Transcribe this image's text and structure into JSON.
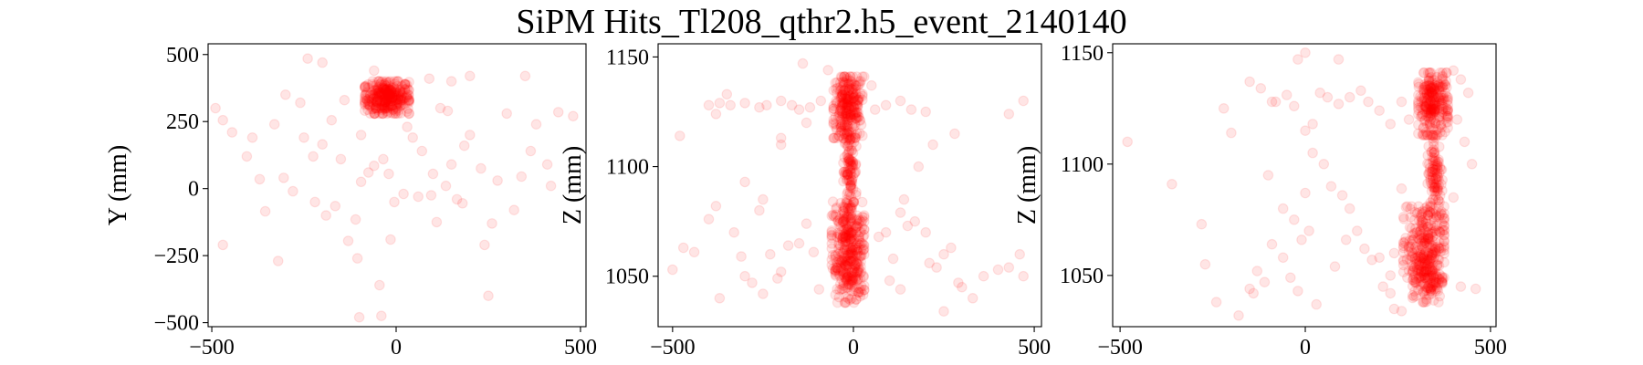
{
  "title": "SiPM Hits_Tl208_qthr2.h5_event_2140140",
  "colors": {
    "points": "#ff0000",
    "axes": "#000000",
    "background": "#ffffff"
  },
  "chart_data": [
    {
      "type": "scatter",
      "xlabel": "",
      "ylabel": "Y (mm)",
      "xlim": [
        -510,
        515
      ],
      "ylim": [
        -515,
        540
      ],
      "xticks": [
        -500,
        0,
        500
      ],
      "yticks": [
        -500,
        -250,
        0,
        250,
        500
      ],
      "clusters": [
        {
          "center": [
            -25,
            340
          ],
          "radius": [
            60,
            60
          ],
          "count": 320
        }
      ],
      "points": [
        [
          -490,
          300
        ],
        [
          -470,
          255
        ],
        [
          -445,
          210
        ],
        [
          -405,
          120
        ],
        [
          -370,
          35
        ],
        [
          -355,
          -85
        ],
        [
          -320,
          -270
        ],
        [
          -470,
          -210
        ],
        [
          -305,
          40
        ],
        [
          -280,
          -10
        ],
        [
          -250,
          190
        ],
        [
          -225,
          120
        ],
        [
          -200,
          165
        ],
        [
          -175,
          255
        ],
        [
          -165,
          -65
        ],
        [
          -150,
          110
        ],
        [
          -110,
          -115
        ],
        [
          -105,
          -260
        ],
        [
          -95,
          25
        ],
        [
          -75,
          60
        ],
        [
          -60,
          85
        ],
        [
          -45,
          -360
        ],
        [
          -35,
          110
        ],
        [
          -20,
          55
        ],
        [
          20,
          -20
        ],
        [
          45,
          190
        ],
        [
          70,
          140
        ],
        [
          95,
          -25
        ],
        [
          110,
          -125
        ],
        [
          135,
          10
        ],
        [
          150,
          90
        ],
        [
          165,
          -40
        ],
        [
          180,
          -55
        ],
        [
          200,
          200
        ],
        [
          230,
          75
        ],
        [
          250,
          -400
        ],
        [
          275,
          30
        ],
        [
          300,
          280
        ],
        [
          340,
          45
        ],
        [
          365,
          140
        ],
        [
          410,
          90
        ],
        [
          440,
          285
        ],
        [
          480,
          270
        ],
        [
          -240,
          485
        ],
        [
          -200,
          470
        ],
        [
          -100,
          -480
        ],
        [
          -40,
          -475
        ],
        [
          90,
          410
        ],
        [
          150,
          400
        ],
        [
          200,
          420
        ],
        [
          240,
          -210
        ],
        [
          320,
          -80
        ],
        [
          -130,
          -195
        ],
        [
          -15,
          -190
        ],
        [
          60,
          -30
        ],
        [
          120,
          300
        ],
        [
          -300,
          350
        ],
        [
          -260,
          320
        ],
        [
          -330,
          240
        ],
        [
          380,
          240
        ],
        [
          -390,
          190
        ],
        [
          420,
          10
        ],
        [
          -220,
          -50
        ],
        [
          -190,
          -100
        ],
        [
          260,
          -130
        ],
        [
          30,
          230
        ],
        [
          -95,
          200
        ],
        [
          100,
          55
        ],
        [
          -5,
          -50
        ],
        [
          185,
          160
        ],
        [
          -140,
          330
        ],
        [
          140,
          290
        ],
        [
          350,
          420
        ],
        [
          -60,
          440
        ]
      ]
    },
    {
      "type": "scatter",
      "xlabel": "",
      "ylabel": "Z (mm)",
      "xlim": [
        -540,
        520
      ],
      "ylim": [
        1027,
        1156
      ],
      "xticks": [
        -500,
        0,
        500
      ],
      "yticks": [
        1050,
        1100,
        1150
      ],
      "clusters": [
        {
          "center": [
            -15,
            1127
          ],
          "radius": [
            40,
            14
          ],
          "count": 260
        },
        {
          "center": [
            -15,
            1068
          ],
          "radius": [
            45,
            16
          ],
          "count": 230
        },
        {
          "center": [
            -10,
            1050
          ],
          "radius": [
            40,
            12
          ],
          "count": 150
        },
        {
          "center": [
            -10,
            1098
          ],
          "radius": [
            18,
            17
          ],
          "count": 110
        }
      ],
      "points": [
        [
          -480,
          1114
        ],
        [
          -400,
          1128
        ],
        [
          -370,
          1129
        ],
        [
          -340,
          1128
        ],
        [
          -300,
          1129
        ],
        [
          -260,
          1127
        ],
        [
          -240,
          1128
        ],
        [
          -200,
          1130
        ],
        [
          -170,
          1128
        ],
        [
          -150,
          1126
        ],
        [
          -120,
          1127
        ],
        [
          -90,
          1130
        ],
        [
          60,
          1126
        ],
        [
          90,
          1128
        ],
        [
          130,
          1130
        ],
        [
          160,
          1126
        ],
        [
          200,
          1125
        ],
        [
          470,
          1130
        ],
        [
          430,
          1124
        ],
        [
          -500,
          1053
        ],
        [
          -470,
          1063
        ],
        [
          -440,
          1061
        ],
        [
          -400,
          1076
        ],
        [
          -380,
          1082
        ],
        [
          -370,
          1040
        ],
        [
          -330,
          1070
        ],
        [
          -310,
          1059
        ],
        [
          -300,
          1050
        ],
        [
          -280,
          1047
        ],
        [
          -260,
          1080
        ],
        [
          -250,
          1085
        ],
        [
          -230,
          1060
        ],
        [
          -210,
          1049
        ],
        [
          -200,
          1052
        ],
        [
          -180,
          1064
        ],
        [
          -150,
          1065
        ],
        [
          -130,
          1074
        ],
        [
          -110,
          1061
        ],
        [
          -95,
          1044
        ],
        [
          70,
          1068
        ],
        [
          90,
          1070
        ],
        [
          110,
          1058
        ],
        [
          130,
          1079
        ],
        [
          150,
          1073
        ],
        [
          170,
          1075
        ],
        [
          200,
          1070
        ],
        [
          210,
          1056
        ],
        [
          230,
          1054
        ],
        [
          250,
          1060
        ],
        [
          270,
          1063
        ],
        [
          290,
          1047
        ],
        [
          300,
          1045
        ],
        [
          330,
          1040
        ],
        [
          360,
          1050
        ],
        [
          400,
          1053
        ],
        [
          430,
          1054
        ],
        [
          460,
          1060
        ],
        [
          470,
          1050
        ],
        [
          -300,
          1093
        ],
        [
          -200,
          1110
        ],
        [
          180,
          1100
        ],
        [
          220,
          1110
        ],
        [
          280,
          1115
        ],
        [
          -200,
          1113
        ],
        [
          250,
          1034
        ],
        [
          -130,
          1120
        ],
        [
          100,
          1048
        ],
        [
          130,
          1044
        ],
        [
          140,
          1085
        ],
        [
          -250,
          1042
        ],
        [
          -140,
          1147
        ],
        [
          30,
          1141
        ],
        [
          -70,
          1144
        ],
        [
          50,
          1137
        ],
        [
          -350,
          1133
        ],
        [
          -380,
          1124
        ]
      ]
    },
    {
      "type": "scatter",
      "xlabel": "",
      "ylabel": "Z (mm)",
      "xlim": [
        -520,
        515
      ],
      "ylim": [
        1027,
        1154
      ],
      "xticks": [
        -500,
        0,
        500
      ],
      "yticks": [
        1050,
        1100,
        1150
      ],
      "clusters": [
        {
          "center": [
            345,
            1127
          ],
          "radius": [
            40,
            14
          ],
          "count": 260
        },
        {
          "center": [
            320,
            1065
          ],
          "radius": [
            55,
            16
          ],
          "count": 230
        },
        {
          "center": [
            330,
            1049
          ],
          "radius": [
            40,
            11
          ],
          "count": 150
        },
        {
          "center": [
            350,
            1095
          ],
          "radius": [
            20,
            18
          ],
          "count": 110
        }
      ],
      "points": [
        [
          -480,
          1110
        ],
        [
          -360,
          1091
        ],
        [
          -280,
          1073
        ],
        [
          -270,
          1055
        ],
        [
          -240,
          1038
        ],
        [
          -180,
          1032
        ],
        [
          -150,
          1044
        ],
        [
          -130,
          1052
        ],
        [
          -110,
          1047
        ],
        [
          -90,
          1064
        ],
        [
          -60,
          1058
        ],
        [
          -40,
          1049
        ],
        [
          -10,
          1066
        ],
        [
          10,
          1070
        ],
        [
          -120,
          1134
        ],
        [
          -90,
          1128
        ],
        [
          -50,
          1131
        ],
        [
          -30,
          1126
        ],
        [
          0,
          1115
        ],
        [
          20,
          1118
        ],
        [
          40,
          1132
        ],
        [
          60,
          1130
        ],
        [
          90,
          1127
        ],
        [
          120,
          1130
        ],
        [
          150,
          1133
        ],
        [
          170,
          1128
        ],
        [
          200,
          1124
        ],
        [
          230,
          1118
        ],
        [
          260,
          1128
        ],
        [
          50,
          1100
        ],
        [
          70,
          1090
        ],
        [
          100,
          1086
        ],
        [
          120,
          1080
        ],
        [
          140,
          1070
        ],
        [
          160,
          1062
        ],
        [
          180,
          1057
        ],
        [
          200,
          1058
        ],
        [
          210,
          1045
        ],
        [
          230,
          1042
        ],
        [
          240,
          1035
        ],
        [
          260,
          1034
        ],
        [
          420,
          1045
        ],
        [
          460,
          1044
        ],
        [
          440,
          1132
        ],
        [
          420,
          1138
        ],
        [
          400,
          1142
        ],
        [
          -200,
          1114
        ],
        [
          -60,
          1080
        ],
        [
          -30,
          1075
        ],
        [
          0,
          1087
        ],
        [
          -100,
          1095
        ],
        [
          30,
          1037
        ],
        [
          -20,
          1043
        ],
        [
          80,
          1054
        ],
        [
          110,
          1066
        ],
        [
          240,
          1060
        ],
        [
          230,
          1050
        ],
        [
          -80,
          1128
        ],
        [
          -150,
          1137
        ],
        [
          20,
          1105
        ],
        [
          410,
          1120
        ],
        [
          430,
          1110
        ],
        [
          450,
          1100
        ],
        [
          400,
          1085
        ],
        [
          90,
          1147
        ],
        [
          -20,
          1147
        ],
        [
          0,
          1150
        ],
        [
          260,
          1089
        ],
        [
          280,
          1120
        ],
        [
          -220,
          1125
        ],
        [
          -140,
          1042
        ]
      ]
    }
  ]
}
